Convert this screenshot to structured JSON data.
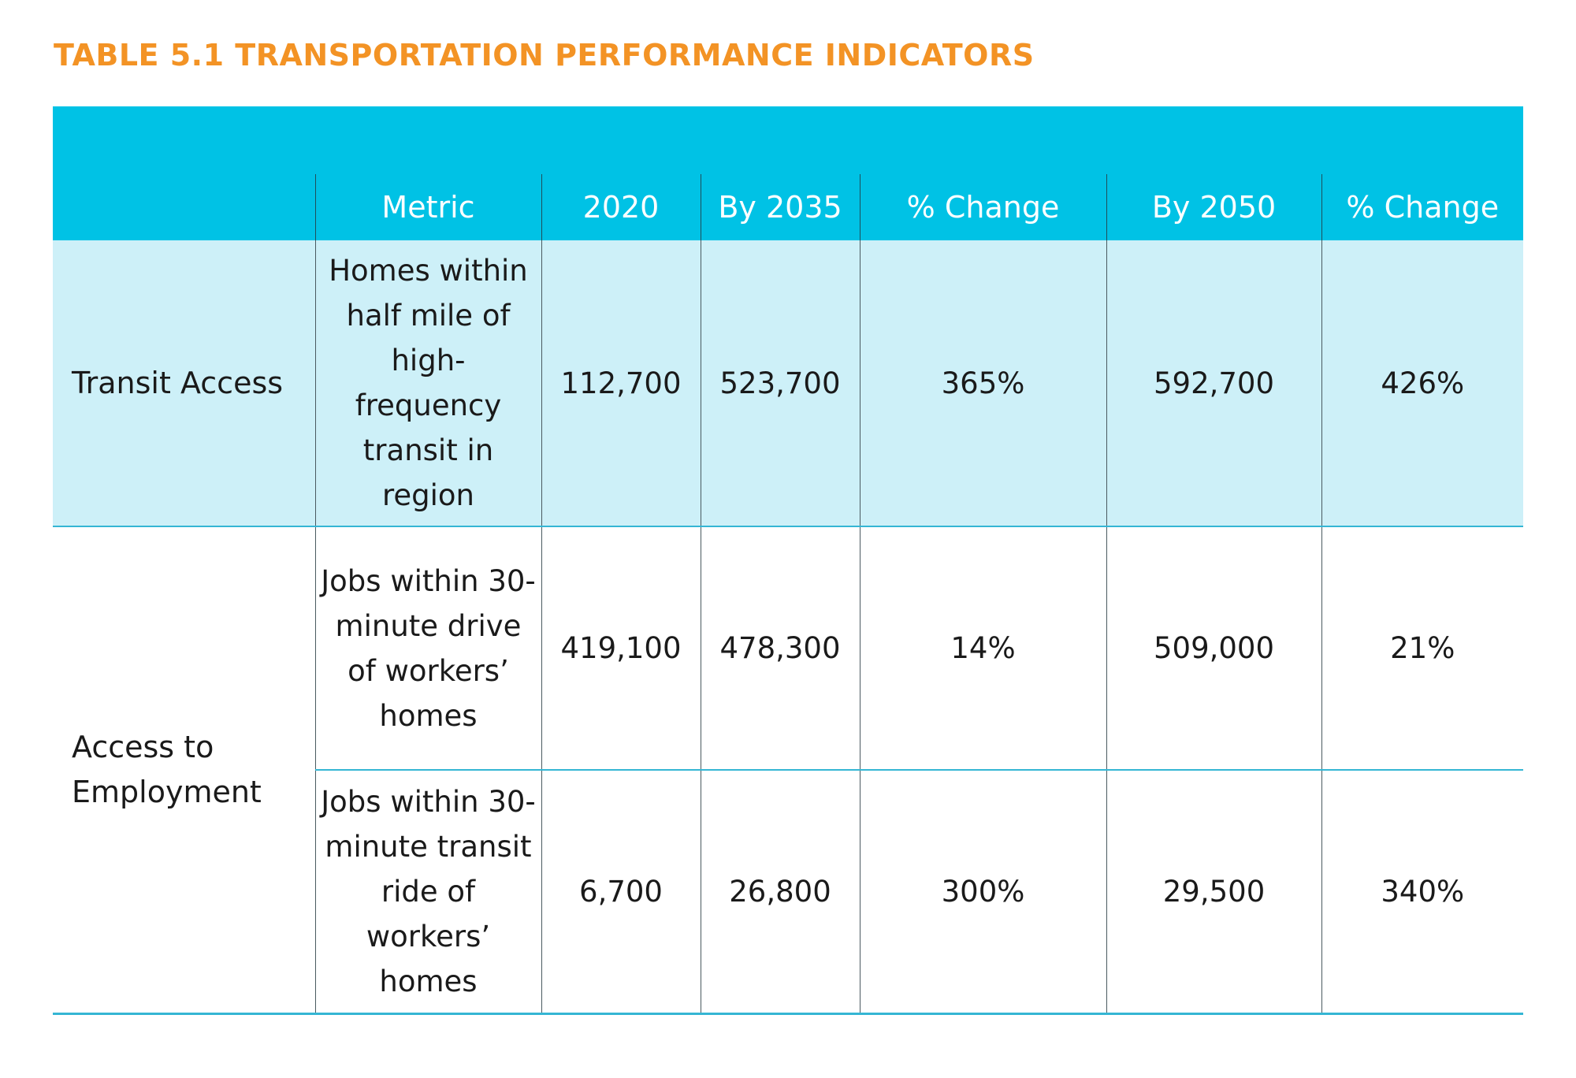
{
  "title": "TABLE 5.1 TRANSPORTATION PERFORMANCE INDICATORS",
  "colors": {
    "title": "#f39325",
    "header_bg": "#00c2e5",
    "highlight_row_bg": "#cdf0f8",
    "rule": "#35b6d4"
  },
  "table": {
    "headers": [
      "",
      "Metric",
      "2020",
      "By 2035",
      "% Change",
      "By 2050",
      "% Change"
    ],
    "rows": [
      {
        "category": "Transit Access",
        "metric": "Homes within half mile of high-frequency transit in region",
        "y2020": "112,700",
        "y2035": "523,700",
        "pct2035": "365%",
        "y2050": "592,700",
        "pct2050": "426%"
      },
      {
        "category": "Access to Employment",
        "metric": "Jobs within 30-minute drive of workers’ homes",
        "y2020": "419,100",
        "y2035": "478,300",
        "pct2035": "14%",
        "y2050": "509,000",
        "pct2050": "21%"
      },
      {
        "category": "Access to Employment",
        "metric": "Jobs within 30-minute transit ride of workers’ homes",
        "y2020": "6,700",
        "y2035": "26,800",
        "pct2035": "300%",
        "y2050": "29,500",
        "pct2050": "340%"
      }
    ]
  }
}
